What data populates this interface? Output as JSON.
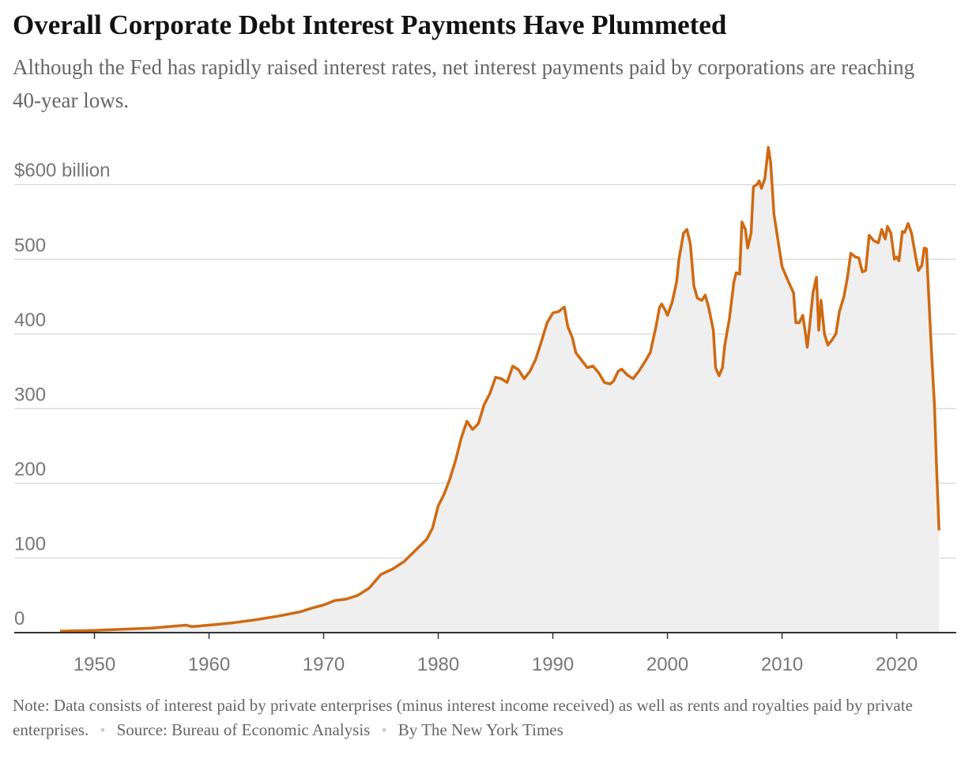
{
  "chart_data": {
    "type": "line",
    "title": "Overall Corporate Debt Interest Payments Have Plummeted",
    "subtitle": "Although the Fed has rapidly raised interest rates, net interest payments paid by corporations are reaching 40-year lows.",
    "note": "Note: Data consists of interest paid by private enterprises (minus interest income received) as well as rents and royalties paid by private enterprises.",
    "source": "Source: Bureau of Economic Analysis",
    "credit": "By The New York Times",
    "color": "#cf6a12",
    "area_color": "#efefef",
    "grid": true,
    "xlim": [
      1943,
      2025.2
    ],
    "xticks": [
      1950,
      1960,
      1970,
      1980,
      1990,
      2000,
      2010,
      2020
    ],
    "ylim": [
      0,
      660
    ],
    "yticks": [
      0,
      100,
      200,
      300,
      400,
      500,
      {
        "value": 600,
        "label": "$600 billion"
      }
    ],
    "x": [
      1947,
      1950,
      1955,
      1958,
      1958.5,
      1960,
      1962,
      1964,
      1966,
      1968,
      1969,
      1970,
      1971,
      1972,
      1973,
      1974,
      1975,
      1976,
      1977,
      1978,
      1979,
      1979.5,
      1980,
      1980.5,
      1981,
      1981.5,
      1982,
      1982.5,
      1983,
      1983.5,
      1984,
      1984.5,
      1985,
      1985.5,
      1986,
      1986.5,
      1987,
      1987.5,
      1988,
      1988.5,
      1989,
      1989.5,
      1990,
      1990.5,
      1991,
      1991.3,
      1991.7,
      1992,
      1992.5,
      1993,
      1993.5,
      1994,
      1994.5,
      1995,
      1995.3,
      1995.7,
      1996,
      1996.5,
      1997,
      1997.5,
      1998,
      1998.5,
      1999,
      1999.3,
      1999.5,
      1999.8,
      2000,
      2000.4,
      2000.8,
      2001,
      2001.4,
      2001.7,
      2002,
      2002.3,
      2002.6,
      2003,
      2003.3,
      2003.6,
      2004,
      2004.2,
      2004.5,
      2004.8,
      2005,
      2005.4,
      2005.8,
      2006,
      2006.3,
      2006.5,
      2006.8,
      2007,
      2007.3,
      2007.5,
      2007.8,
      2008,
      2008.2,
      2008.5,
      2008.8,
      2009,
      2009.3,
      2009.7,
      2010,
      2010.5,
      2011,
      2011.2,
      2011.5,
      2011.8,
      2012,
      2012.2,
      2012.4,
      2012.7,
      2013,
      2013.2,
      2013.4,
      2013.7,
      2014,
      2014.4,
      2014.7,
      2015,
      2015.4,
      2015.7,
      2016,
      2016.4,
      2016.7,
      2017,
      2017.3,
      2017.6,
      2018,
      2018.4,
      2018.7,
      2019,
      2019.2,
      2019.5,
      2019.8,
      2020,
      2020.2,
      2020.5,
      2020.7,
      2021,
      2021.3,
      2021.7,
      2021.9,
      2022.2,
      2022.4,
      2022.6,
      2022.9,
      2023.1,
      2023.3,
      2023.5,
      2023.7
    ],
    "values": [
      2,
      3,
      6,
      10,
      8,
      10,
      13,
      17,
      22,
      28,
      33,
      37,
      43,
      45,
      50,
      60,
      78,
      85,
      95,
      110,
      125,
      140,
      170,
      185,
      205,
      230,
      260,
      283,
      272,
      280,
      305,
      320,
      342,
      340,
      335,
      357,
      352,
      340,
      350,
      366,
      390,
      415,
      428,
      430,
      436,
      410,
      395,
      375,
      365,
      355,
      357,
      348,
      335,
      333,
      337,
      350,
      353,
      345,
      340,
      350,
      362,
      375,
      410,
      435,
      440,
      432,
      425,
      442,
      470,
      500,
      535,
      540,
      520,
      465,
      448,
      445,
      452,
      435,
      405,
      355,
      344,
      355,
      385,
      420,
      470,
      482,
      480,
      550,
      540,
      515,
      535,
      597,
      600,
      605,
      595,
      608,
      650,
      630,
      560,
      520,
      490,
      472,
      455,
      415,
      415,
      425,
      405,
      382,
      410,
      455,
      476,
      405,
      445,
      400,
      385,
      393,
      400,
      430,
      450,
      475,
      508,
      503,
      502,
      483,
      485,
      532,
      525,
      522,
      540,
      527,
      544,
      535,
      500,
      503,
      498,
      537,
      536,
      548,
      535,
      500,
      485,
      492,
      515,
      514,
      420,
      360,
      305,
      215,
      137
    ]
  }
}
